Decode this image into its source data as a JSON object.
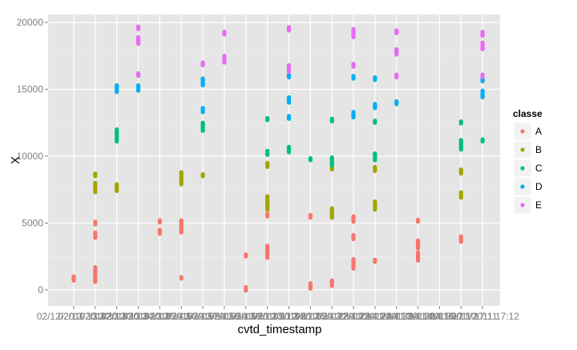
{
  "chart_data": {
    "type": "scatter",
    "xlabel": "cvtd_timestamp",
    "ylabel": "X",
    "ylim": [
      -1200,
      20600
    ],
    "y_ticks": [
      0,
      5000,
      10000,
      15000,
      20000
    ],
    "y_tick_labels": [
      "0",
      "5000",
      "10000",
      "15000",
      "20000"
    ],
    "categories": [
      "02/12/2011 13:32",
      "02/12/2011 13:33",
      "02/12/2011 13:34",
      "02/12/2011 13:35",
      "02/12/2011 14:56",
      "02/12/2011 14:57",
      "02/12/2011 14:58",
      "02/12/2011 14:59",
      "05/12/2011 11:23",
      "05/12/2011 11:24",
      "05/12/2011 11:25",
      "05/12/2011 14:22",
      "05/12/2011 14:23",
      "05/12/2011 14:24",
      "28/11/2011 14:13",
      "28/11/2011 14:14",
      "28/11/2011 14:15",
      "30/11/2011 17:10",
      "30/11/2011 17:11",
      "30/11/2011 17:12"
    ],
    "x_tick_labels_shown": [
      "02/12/2011 13:32",
      "02/12/2011 13:33",
      "02/12/2011 13:34",
      "02/12/2011 13:35",
      "02/12/2011 14:56",
      "02/12/2011 14:57",
      "02/12/2011 14:58",
      "02/12/2011 14:59",
      "05/12/2011 11:23",
      "05/12/2011 11:24",
      "05/12/2011 11:25",
      "05/12/2011 14:22",
      "05/12/2011 14:23",
      "05/12/2011 14:24",
      "28/11/2011 14:13",
      "28/11/2011 14:14",
      "28/11/2011 14:15",
      "30/11/2011 17:10",
      "30/11/2011 17:11",
      "30/11/2011 17:12"
    ],
    "grid": true,
    "legend_placement": "right",
    "legend_title": "classe",
    "series": [
      {
        "name": "A",
        "color": "#F8766D",
        "ranges": [
          {
            "x": "02/12/2011 13:32",
            "from": 700,
            "to": 1000
          },
          {
            "x": "02/12/2011 13:33",
            "from": 600,
            "to": 1700
          },
          {
            "x": "02/12/2011 13:33",
            "from": 3900,
            "to": 4300
          },
          {
            "x": "02/12/2011 13:33",
            "from": 4900,
            "to": 5100
          },
          {
            "x": "02/12/2011 14:56",
            "from": 4200,
            "to": 4500
          },
          {
            "x": "02/12/2011 14:56",
            "from": 5050,
            "to": 5200
          },
          {
            "x": "02/12/2011 14:57",
            "from": 4300,
            "to": 5200
          },
          {
            "x": "02/12/2011 14:57",
            "from": 850,
            "to": 950
          },
          {
            "x": "05/12/2011 11:23",
            "from": -50,
            "to": 200
          },
          {
            "x": "05/12/2011 11:23",
            "from": 2500,
            "to": 2650
          },
          {
            "x": "05/12/2011 11:24",
            "from": 2400,
            "to": 3300
          },
          {
            "x": "05/12/2011 11:24",
            "from": 5500,
            "to": 5700
          },
          {
            "x": "05/12/2011 14:22",
            "from": 100,
            "to": 500
          },
          {
            "x": "05/12/2011 14:22",
            "from": 5400,
            "to": 5600
          },
          {
            "x": "05/12/2011 14:23",
            "from": 300,
            "to": 700
          },
          {
            "x": "05/12/2011 14:24",
            "from": 1600,
            "to": 2300
          },
          {
            "x": "05/12/2011 14:24",
            "from": 3800,
            "to": 4100
          },
          {
            "x": "05/12/2011 14:24",
            "from": 5100,
            "to": 5500
          },
          {
            "x": "28/11/2011 14:13",
            "from": 2100,
            "to": 2250
          },
          {
            "x": "28/11/2011 14:15",
            "from": 2200,
            "to": 2800
          },
          {
            "x": "28/11/2011 14:15",
            "from": 3100,
            "to": 3700
          },
          {
            "x": "28/11/2011 14:15",
            "from": 5100,
            "to": 5250
          },
          {
            "x": "30/11/2011 17:11",
            "from": 3600,
            "to": 4000
          }
        ]
      },
      {
        "name": "B",
        "color": "#A3A500",
        "ranges": [
          {
            "x": "02/12/2011 13:33",
            "from": 7300,
            "to": 7600
          },
          {
            "x": "02/12/2011 13:33",
            "from": 7800,
            "to": 8000
          },
          {
            "x": "02/12/2011 13:33",
            "from": 8500,
            "to": 8700
          },
          {
            "x": "02/12/2011 13:34",
            "from": 7400,
            "to": 7900
          },
          {
            "x": "02/12/2011 14:57",
            "from": 7900,
            "to": 8800
          },
          {
            "x": "02/12/2011 14:58",
            "from": 8500,
            "to": 8650
          },
          {
            "x": "05/12/2011 11:24",
            "from": 6000,
            "to": 6200
          },
          {
            "x": "05/12/2011 11:24",
            "from": 6300,
            "to": 7000
          },
          {
            "x": "05/12/2011 11:24",
            "from": 9200,
            "to": 9500
          },
          {
            "x": "05/12/2011 14:23",
            "from": 5400,
            "to": 6100
          },
          {
            "x": "05/12/2011 14:23",
            "from": 9000,
            "to": 9200
          },
          {
            "x": "28/11/2011 14:13",
            "from": 6000,
            "to": 6600
          },
          {
            "x": "28/11/2011 14:13",
            "from": 8900,
            "to": 9200
          },
          {
            "x": "30/11/2011 17:11",
            "from": 6900,
            "to": 7300
          },
          {
            "x": "30/11/2011 17:11",
            "from": 8700,
            "to": 9000
          }
        ]
      },
      {
        "name": "C",
        "color": "#00BF7D",
        "ranges": [
          {
            "x": "02/12/2011 13:34",
            "from": 11100,
            "to": 12000
          },
          {
            "x": "02/12/2011 14:58",
            "from": 11900,
            "to": 12500
          },
          {
            "x": "05/12/2011 11:24",
            "from": 10100,
            "to": 10400
          },
          {
            "x": "05/12/2011 11:24",
            "from": 12700,
            "to": 12850
          },
          {
            "x": "05/12/2011 11:25",
            "from": 10300,
            "to": 10700
          },
          {
            "x": "05/12/2011 14:22",
            "from": 9700,
            "to": 9850
          },
          {
            "x": "05/12/2011 14:23",
            "from": 9300,
            "to": 9900
          },
          {
            "x": "05/12/2011 14:23",
            "from": 12600,
            "to": 12800
          },
          {
            "x": "28/11/2011 14:13",
            "from": 9700,
            "to": 10200
          },
          {
            "x": "28/11/2011 14:13",
            "from": 12500,
            "to": 12650
          },
          {
            "x": "30/11/2011 17:11",
            "from": 10500,
            "to": 11200
          },
          {
            "x": "30/11/2011 17:11",
            "from": 12450,
            "to": 12600
          },
          {
            "x": "30/11/2011 17:12",
            "from": 11100,
            "to": 11250
          }
        ]
      },
      {
        "name": "D",
        "color": "#00B0F6",
        "ranges": [
          {
            "x": "02/12/2011 13:34",
            "from": 14800,
            "to": 15300
          },
          {
            "x": "02/12/2011 13:35",
            "from": 14900,
            "to": 15300
          },
          {
            "x": "02/12/2011 14:58",
            "from": 13300,
            "to": 13600
          },
          {
            "x": "02/12/2011 14:58",
            "from": 15300,
            "to": 15800
          },
          {
            "x": "05/12/2011 11:25",
            "from": 12800,
            "to": 13000
          },
          {
            "x": "05/12/2011 11:25",
            "from": 14000,
            "to": 14400
          },
          {
            "x": "05/12/2011 11:25",
            "from": 15900,
            "to": 16100
          },
          {
            "x": "05/12/2011 14:24",
            "from": 12900,
            "to": 13300
          },
          {
            "x": "05/12/2011 14:24",
            "from": 15800,
            "to": 16000
          },
          {
            "x": "28/11/2011 14:13",
            "from": 13600,
            "to": 13900
          },
          {
            "x": "28/11/2011 14:13",
            "from": 15700,
            "to": 15900
          },
          {
            "x": "28/11/2011 14:14",
            "from": 13900,
            "to": 14100
          },
          {
            "x": "30/11/2011 17:12",
            "from": 14400,
            "to": 14900
          },
          {
            "x": "30/11/2011 17:12",
            "from": 15600,
            "to": 15800
          }
        ]
      },
      {
        "name": "E",
        "color": "#E76BF3",
        "ranges": [
          {
            "x": "02/12/2011 13:35",
            "from": 16000,
            "to": 16200
          },
          {
            "x": "02/12/2011 13:35",
            "from": 18400,
            "to": 18900
          },
          {
            "x": "02/12/2011 13:35",
            "from": 19500,
            "to": 19700
          },
          {
            "x": "02/12/2011 14:58",
            "from": 16800,
            "to": 17000
          },
          {
            "x": "02/12/2011 14:59",
            "from": 17000,
            "to": 17500
          },
          {
            "x": "02/12/2011 14:59",
            "from": 19100,
            "to": 19300
          },
          {
            "x": "05/12/2011 11:25",
            "from": 16300,
            "to": 16800
          },
          {
            "x": "05/12/2011 11:25",
            "from": 19400,
            "to": 19650
          },
          {
            "x": "05/12/2011 14:24",
            "from": 16700,
            "to": 16900
          },
          {
            "x": "05/12/2011 14:24",
            "from": 18900,
            "to": 19500
          },
          {
            "x": "28/11/2011 14:14",
            "from": 15900,
            "to": 16100
          },
          {
            "x": "28/11/2011 14:14",
            "from": 17600,
            "to": 18000
          },
          {
            "x": "28/11/2011 14:14",
            "from": 19200,
            "to": 19400
          },
          {
            "x": "30/11/2011 17:12",
            "from": 15900,
            "to": 16100
          },
          {
            "x": "30/11/2011 17:12",
            "from": 18000,
            "to": 18500
          },
          {
            "x": "30/11/2011 17:12",
            "from": 19000,
            "to": 19300
          }
        ]
      }
    ]
  },
  "colors": {
    "panel_background": "#E5E5E5",
    "grid_major": "#FFFFFF",
    "grid_minor": "#F2F2F2",
    "tick_text": "#7F7F7F",
    "legend_key_background": "#F2F2F2"
  }
}
